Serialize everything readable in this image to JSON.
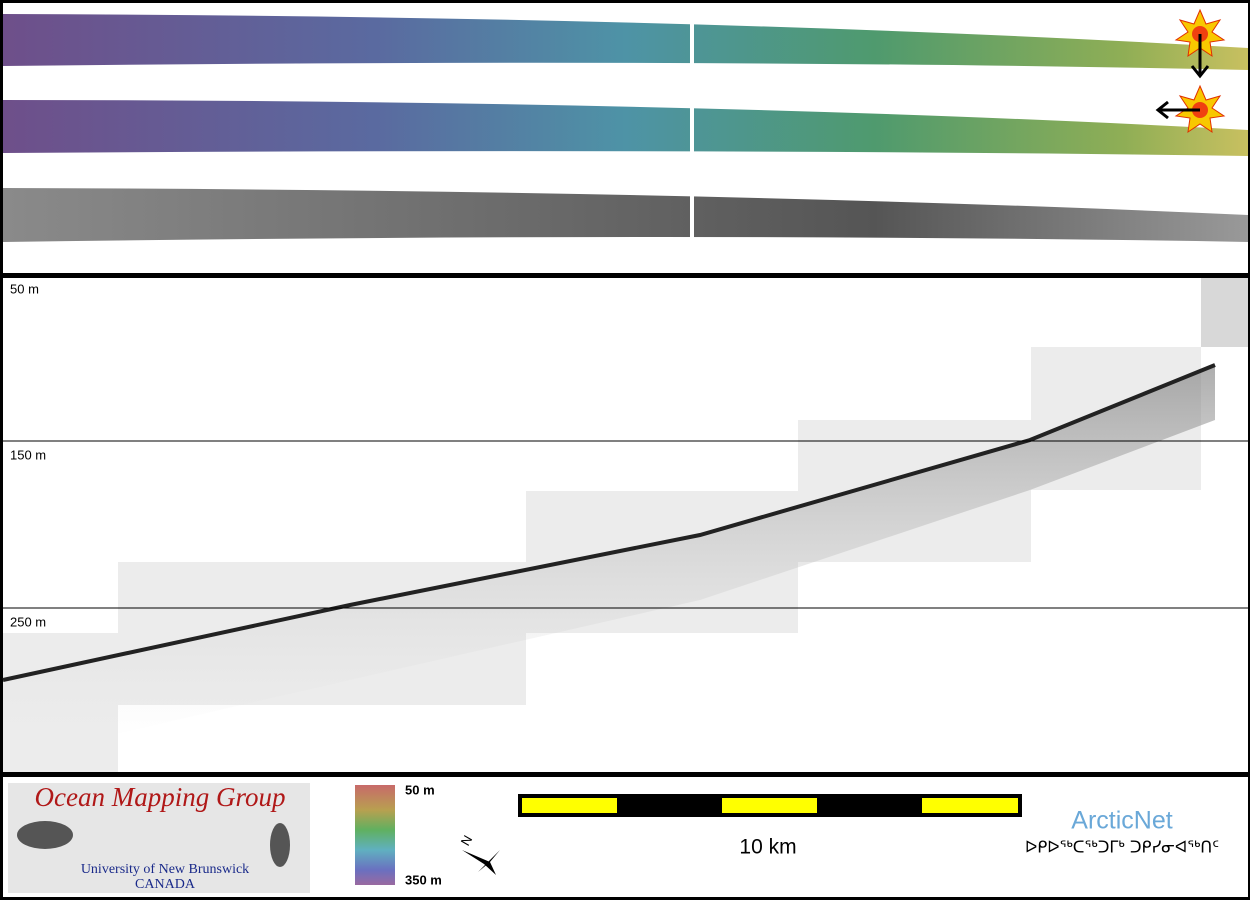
{
  "profile": {
    "depth_labels": [
      "50 m",
      "150 m",
      "250 m"
    ]
  },
  "logo": {
    "title": "Ocean Mapping Group",
    "university": "University of New Brunswick",
    "country": "CANADA"
  },
  "colorbar": {
    "top_label": "50 m",
    "bottom_label": "350 m"
  },
  "north_arrow": {
    "label": "N"
  },
  "scale_bar": {
    "label": "10 km"
  },
  "partner": {
    "name": "ArcticNet",
    "name_syllabics": "ᐅᑭᐅᖅᑕᖅᑐᒥᒃ ᑐᑭᓯᓂᐊᖅᑎᑦ"
  }
}
